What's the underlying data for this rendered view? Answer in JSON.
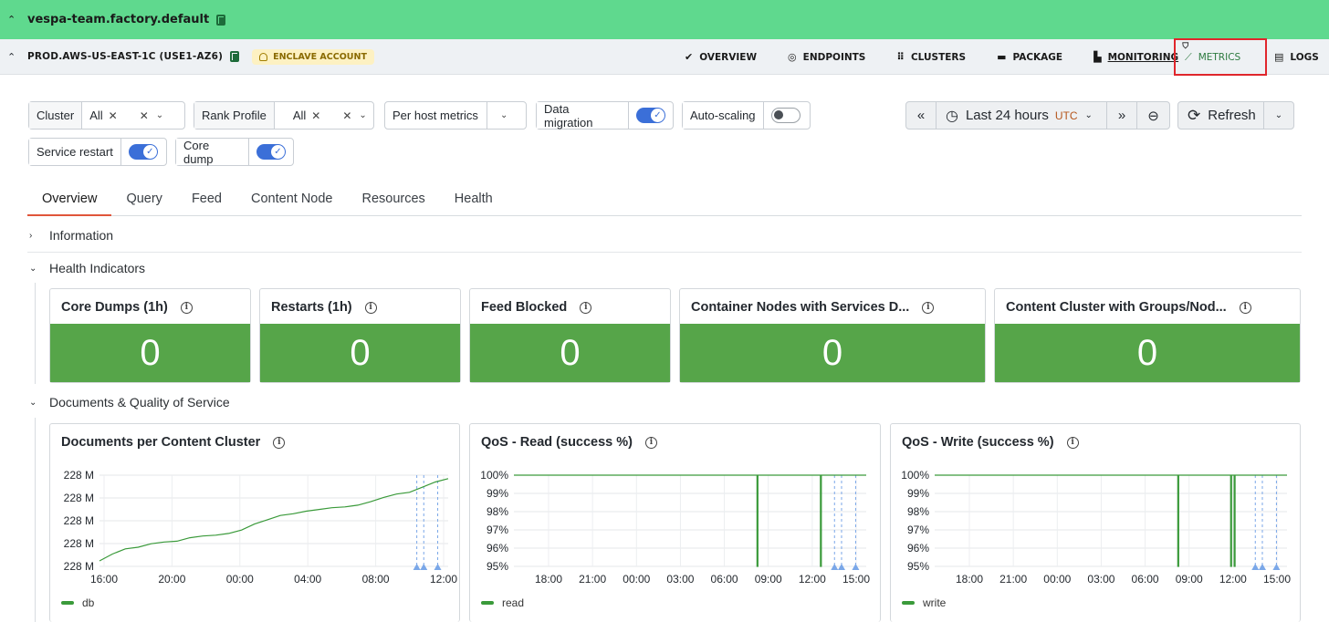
{
  "top": {
    "team": "vespa-team.factory.default"
  },
  "nav": {
    "env": "PROD.AWS-US-EAST-1C (USE1-AZ6)",
    "badge": "ENCLAVE ACCOUNT",
    "items": [
      {
        "label": "OVERVIEW",
        "icon": "check-circle-icon"
      },
      {
        "label": "ENDPOINTS",
        "icon": "target-icon"
      },
      {
        "label": "CLUSTERS",
        "icon": "grid-dots-icon"
      },
      {
        "label": "PACKAGE",
        "icon": "archive-icon"
      },
      {
        "label": "MONITORING",
        "icon": "chart-icon"
      },
      {
        "label": "METRICS",
        "icon": "line-chart-icon"
      },
      {
        "label": "LOGS",
        "icon": "document-icon"
      }
    ]
  },
  "filters": {
    "cluster": {
      "label": "Cluster",
      "value": "All"
    },
    "rank": {
      "label": "Rank Profile",
      "value": "All"
    },
    "per_host": "Per host metrics",
    "data_migration": {
      "label": "Data migration",
      "on": true
    },
    "auto_scaling": {
      "label": "Auto-scaling",
      "on": false
    },
    "service_restart": {
      "label": "Service restart",
      "on": true
    },
    "core_dump": {
      "label": "Core dump",
      "on": true
    }
  },
  "time": {
    "range": "Last 24 hours",
    "tz": "UTC",
    "refresh": "Refresh"
  },
  "tabs": [
    "Overview",
    "Query",
    "Feed",
    "Content Node",
    "Resources",
    "Health"
  ],
  "sections": {
    "information": "Information",
    "health": "Health Indicators",
    "docs": "Documents & Quality of Service"
  },
  "health_cards": [
    {
      "title": "Core Dumps (1h)",
      "value": "0"
    },
    {
      "title": "Restarts (1h)",
      "value": "0"
    },
    {
      "title": "Feed Blocked",
      "value": "0"
    },
    {
      "title": "Container Nodes with Services D...",
      "value": "0"
    },
    {
      "title": "Content Cluster with Groups/Nod...",
      "value": "0"
    }
  ],
  "colors": {
    "green_header": "#5fd98e",
    "ok": "#56a549",
    "accent_red": "#e0262c",
    "series": "#3a9a3a"
  },
  "chart_data": [
    {
      "type": "line",
      "title": "Documents per Content Cluster",
      "x_ticks": [
        "16:00",
        "20:00",
        "00:00",
        "04:00",
        "08:00",
        "12:00"
      ],
      "y_ticks": [
        "228 M",
        "228 M",
        "228 M",
        "228 M",
        "228 M"
      ],
      "series": [
        {
          "name": "db",
          "values": [
            0,
            0.08,
            0.14,
            0.16,
            0.2,
            0.22,
            0.23,
            0.27,
            0.29,
            0.3,
            0.32,
            0.36,
            0.43,
            0.48,
            0.53,
            0.55,
            0.58,
            0.6,
            0.62,
            0.63,
            0.65,
            0.69,
            0.74,
            0.78,
            0.8,
            0.86,
            0.92,
            0.96
          ]
        }
      ]
    },
    {
      "type": "line",
      "title": "QoS - Read (success %)",
      "x_ticks": [
        "18:00",
        "21:00",
        "00:00",
        "03:00",
        "06:00",
        "09:00",
        "12:00",
        "15:00"
      ],
      "y_ticks": [
        "100%",
        "99%",
        "98%",
        "97%",
        "96%",
        "95%"
      ],
      "ylim": [
        95,
        100
      ],
      "series": [
        {
          "name": "read",
          "values": [
            100
          ],
          "dips_at_x": [
            0.69,
            0.87
          ]
        }
      ]
    },
    {
      "type": "line",
      "title": "QoS - Write (success %)",
      "x_ticks": [
        "18:00",
        "21:00",
        "00:00",
        "03:00",
        "06:00",
        "09:00",
        "12:00",
        "15:00"
      ],
      "y_ticks": [
        "100%",
        "99%",
        "98%",
        "97%",
        "96%",
        "95%"
      ],
      "ylim": [
        95,
        100
      ],
      "series": [
        {
          "name": "write",
          "values": [
            100
          ],
          "dips_at_x": [
            0.69,
            0.84,
            0.85
          ]
        }
      ]
    }
  ]
}
